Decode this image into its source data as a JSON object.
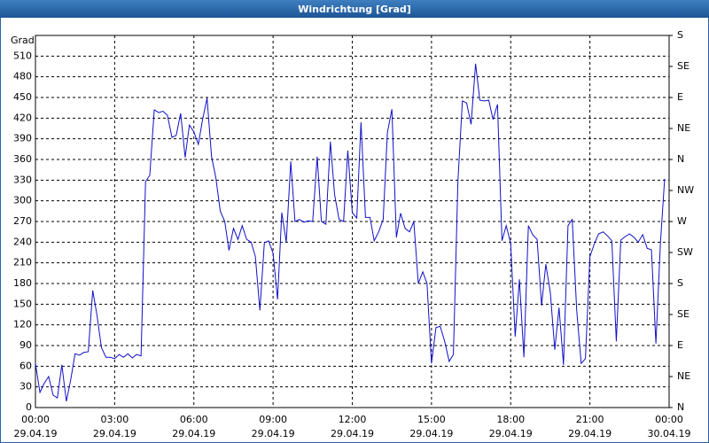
{
  "chart_data": {
    "type": "line",
    "title": "Windrichtung [Grad]",
    "y_label": "Grad",
    "color": "#1010c8",
    "x": [
      0,
      0.17,
      0.33,
      0.5,
      0.67,
      0.83,
      1,
      1.17,
      1.33,
      1.5,
      1.67,
      1.83,
      2,
      2.17,
      2.33,
      2.5,
      2.67,
      2.83,
      3,
      3.17,
      3.33,
      3.5,
      3.67,
      3.83,
      4,
      4.17,
      4.33,
      4.5,
      4.67,
      4.83,
      5,
      5.17,
      5.33,
      5.5,
      5.67,
      5.83,
      6,
      6.17,
      6.33,
      6.5,
      6.67,
      6.83,
      7,
      7.17,
      7.33,
      7.5,
      7.67,
      7.83,
      8,
      8.17,
      8.33,
      8.5,
      8.67,
      8.83,
      9,
      9.17,
      9.33,
      9.5,
      9.67,
      9.83,
      10,
      10.17,
      10.33,
      10.5,
      10.67,
      10.83,
      11,
      11.17,
      11.33,
      11.5,
      11.67,
      11.83,
      12,
      12.17,
      12.33,
      12.5,
      12.67,
      12.83,
      13,
      13.17,
      13.33,
      13.5,
      13.67,
      13.83,
      14,
      14.17,
      14.33,
      14.5,
      14.67,
      14.83,
      15,
      15.17,
      15.33,
      15.5,
      15.67,
      15.83,
      16,
      16.17,
      16.33,
      16.5,
      16.67,
      16.83,
      17,
      17.17,
      17.33,
      17.5,
      17.67,
      17.83,
      18,
      18.17,
      18.33,
      18.5,
      18.67,
      18.83,
      19,
      19.17,
      19.33,
      19.5,
      19.67,
      19.83,
      20,
      20.17,
      20.33,
      20.5,
      20.67,
      20.83,
      21,
      21.17,
      21.33,
      21.5,
      21.67,
      21.83,
      22,
      22.17,
      22.33,
      22.5,
      22.67,
      22.83,
      23,
      23.17,
      23.33,
      23.5,
      23.67,
      23.83
    ],
    "values": [
      64,
      22,
      35,
      45,
      18,
      14,
      62,
      9,
      39,
      78,
      76,
      80,
      81,
      170,
      134,
      87,
      73,
      73,
      71,
      77,
      73,
      78,
      72,
      77,
      75,
      328,
      337,
      432,
      428,
      430,
      424,
      392,
      395,
      427,
      363,
      410,
      400,
      382,
      418,
      449,
      364,
      334,
      285,
      270,
      228,
      260,
      244,
      264,
      244,
      240,
      219,
      141,
      239,
      242,
      224,
      157,
      283,
      240,
      357,
      270,
      273,
      269,
      271,
      270,
      364,
      270,
      266,
      386,
      309,
      273,
      270,
      373,
      283,
      275,
      414,
      276,
      276,
      242,
      255,
      273,
      399,
      433,
      247,
      282,
      260,
      255,
      270,
      180,
      197,
      180,
      64,
      116,
      118,
      96,
      67,
      77,
      328,
      445,
      442,
      411,
      499,
      446,
      445,
      446,
      418,
      440,
      242,
      264,
      238,
      103,
      186,
      73,
      264,
      251,
      244,
      148,
      208,
      167,
      84,
      145,
      62,
      264,
      273,
      141,
      64,
      71,
      219,
      238,
      252,
      255,
      249,
      242,
      96,
      243,
      248,
      252,
      247,
      240,
      251,
      231,
      229,
      93,
      238,
      332
    ],
    "xlim": [
      0,
      24
    ],
    "xticks": [
      {
        "value": 0,
        "label": "00:00"
      },
      {
        "value": 3,
        "label": "03:00"
      },
      {
        "value": 6,
        "label": "06:00"
      },
      {
        "value": 9,
        "label": "09:00"
      },
      {
        "value": 12,
        "label": "12:00"
      },
      {
        "value": 15,
        "label": "15:00"
      },
      {
        "value": 18,
        "label": "18:00"
      },
      {
        "value": 21,
        "label": "21:00"
      },
      {
        "value": 24,
        "label": "00:00"
      }
    ],
    "xtick_dates": [
      "29.04.19",
      "29.04.19",
      "29.04.19",
      "29.04.19",
      "29.04.19",
      "29.04.19",
      "29.04.19",
      "29.04.19",
      "30.04.19"
    ],
    "ylim": [
      0,
      540
    ],
    "yticks": [
      0,
      30,
      60,
      90,
      120,
      150,
      180,
      210,
      240,
      270,
      300,
      330,
      360,
      390,
      420,
      450,
      480,
      510
    ],
    "y2lim": [
      0,
      540
    ],
    "y2ticks": [
      {
        "value": 0,
        "label": "N"
      },
      {
        "value": 45,
        "label": "NE"
      },
      {
        "value": 90,
        "label": "E"
      },
      {
        "value": 135,
        "label": "SE"
      },
      {
        "value": 180,
        "label": "S"
      },
      {
        "value": 225,
        "label": "SW"
      },
      {
        "value": 270,
        "label": "W"
      },
      {
        "value": 315,
        "label": "NW"
      },
      {
        "value": 360,
        "label": "N"
      },
      {
        "value": 405,
        "label": "NE"
      },
      {
        "value": 450,
        "label": "E"
      },
      {
        "value": 495,
        "label": "SE"
      },
      {
        "value": 540,
        "label": "S"
      }
    ],
    "grid": true
  }
}
